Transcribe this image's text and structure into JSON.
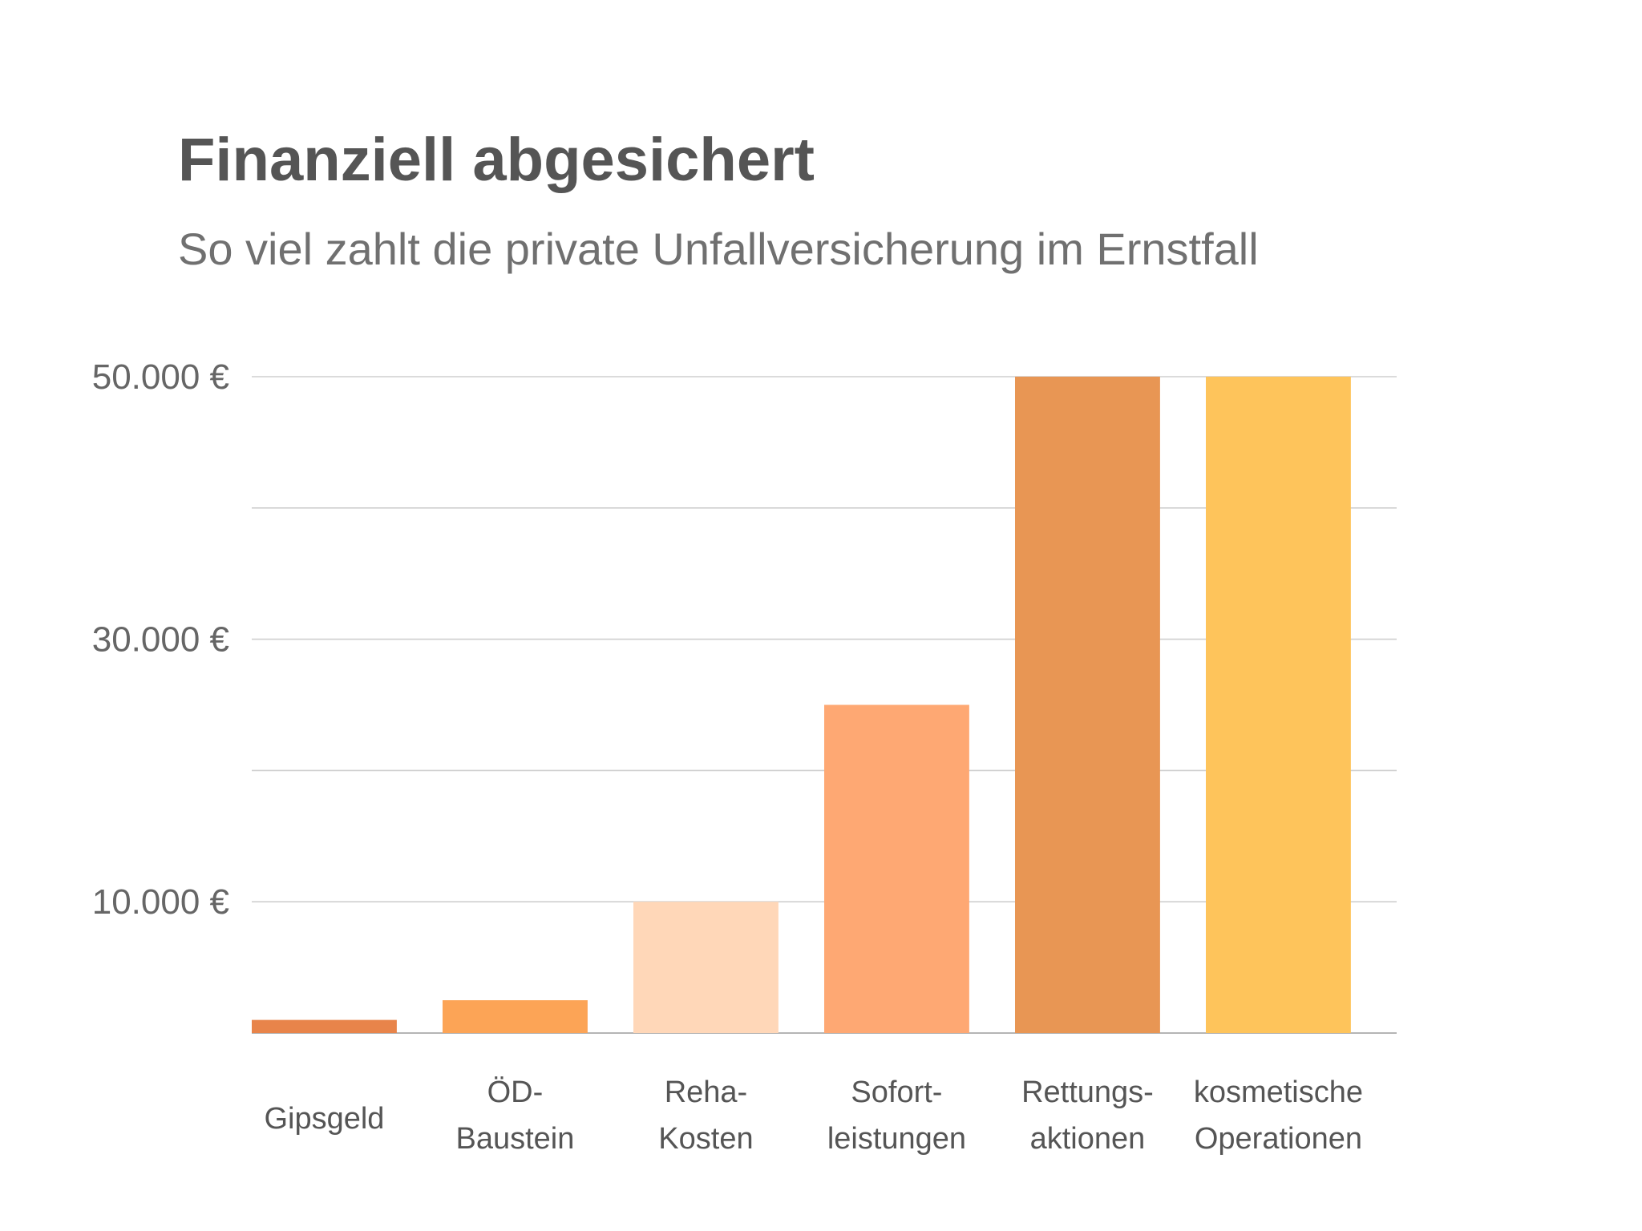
{
  "chart_data": {
    "type": "bar",
    "title": "Finanziell abgesichert",
    "subtitle": "So viel zahlt die private Unfallversicherung im Ernstfall",
    "categories": [
      [
        "Gipsgeld"
      ],
      [
        "ÖD-",
        "Baustein"
      ],
      [
        "Reha-",
        "Kosten"
      ],
      [
        "Sofort-",
        "leistungen"
      ],
      [
        "Rettungs-",
        "aktionen"
      ],
      [
        "kosmetische",
        "Operationen"
      ]
    ],
    "values": [
      1000,
      2500,
      10000,
      25000,
      50000,
      50000
    ],
    "colors": [
      "#e8844a",
      "#fca456",
      "#ffd7b8",
      "#fea873",
      "#e89654",
      "#fec45b"
    ],
    "ylim": [
      0,
      50000
    ],
    "yticks": [
      0,
      10000,
      20000,
      30000,
      40000,
      50000
    ],
    "ytick_labels": [
      {
        "value": 10000,
        "label": "10.000 €"
      },
      {
        "value": 30000,
        "label": "30.000 €"
      },
      {
        "value": 50000,
        "label": "50.000 €"
      }
    ],
    "xlabel": "",
    "ylabel": "",
    "grid": true
  }
}
